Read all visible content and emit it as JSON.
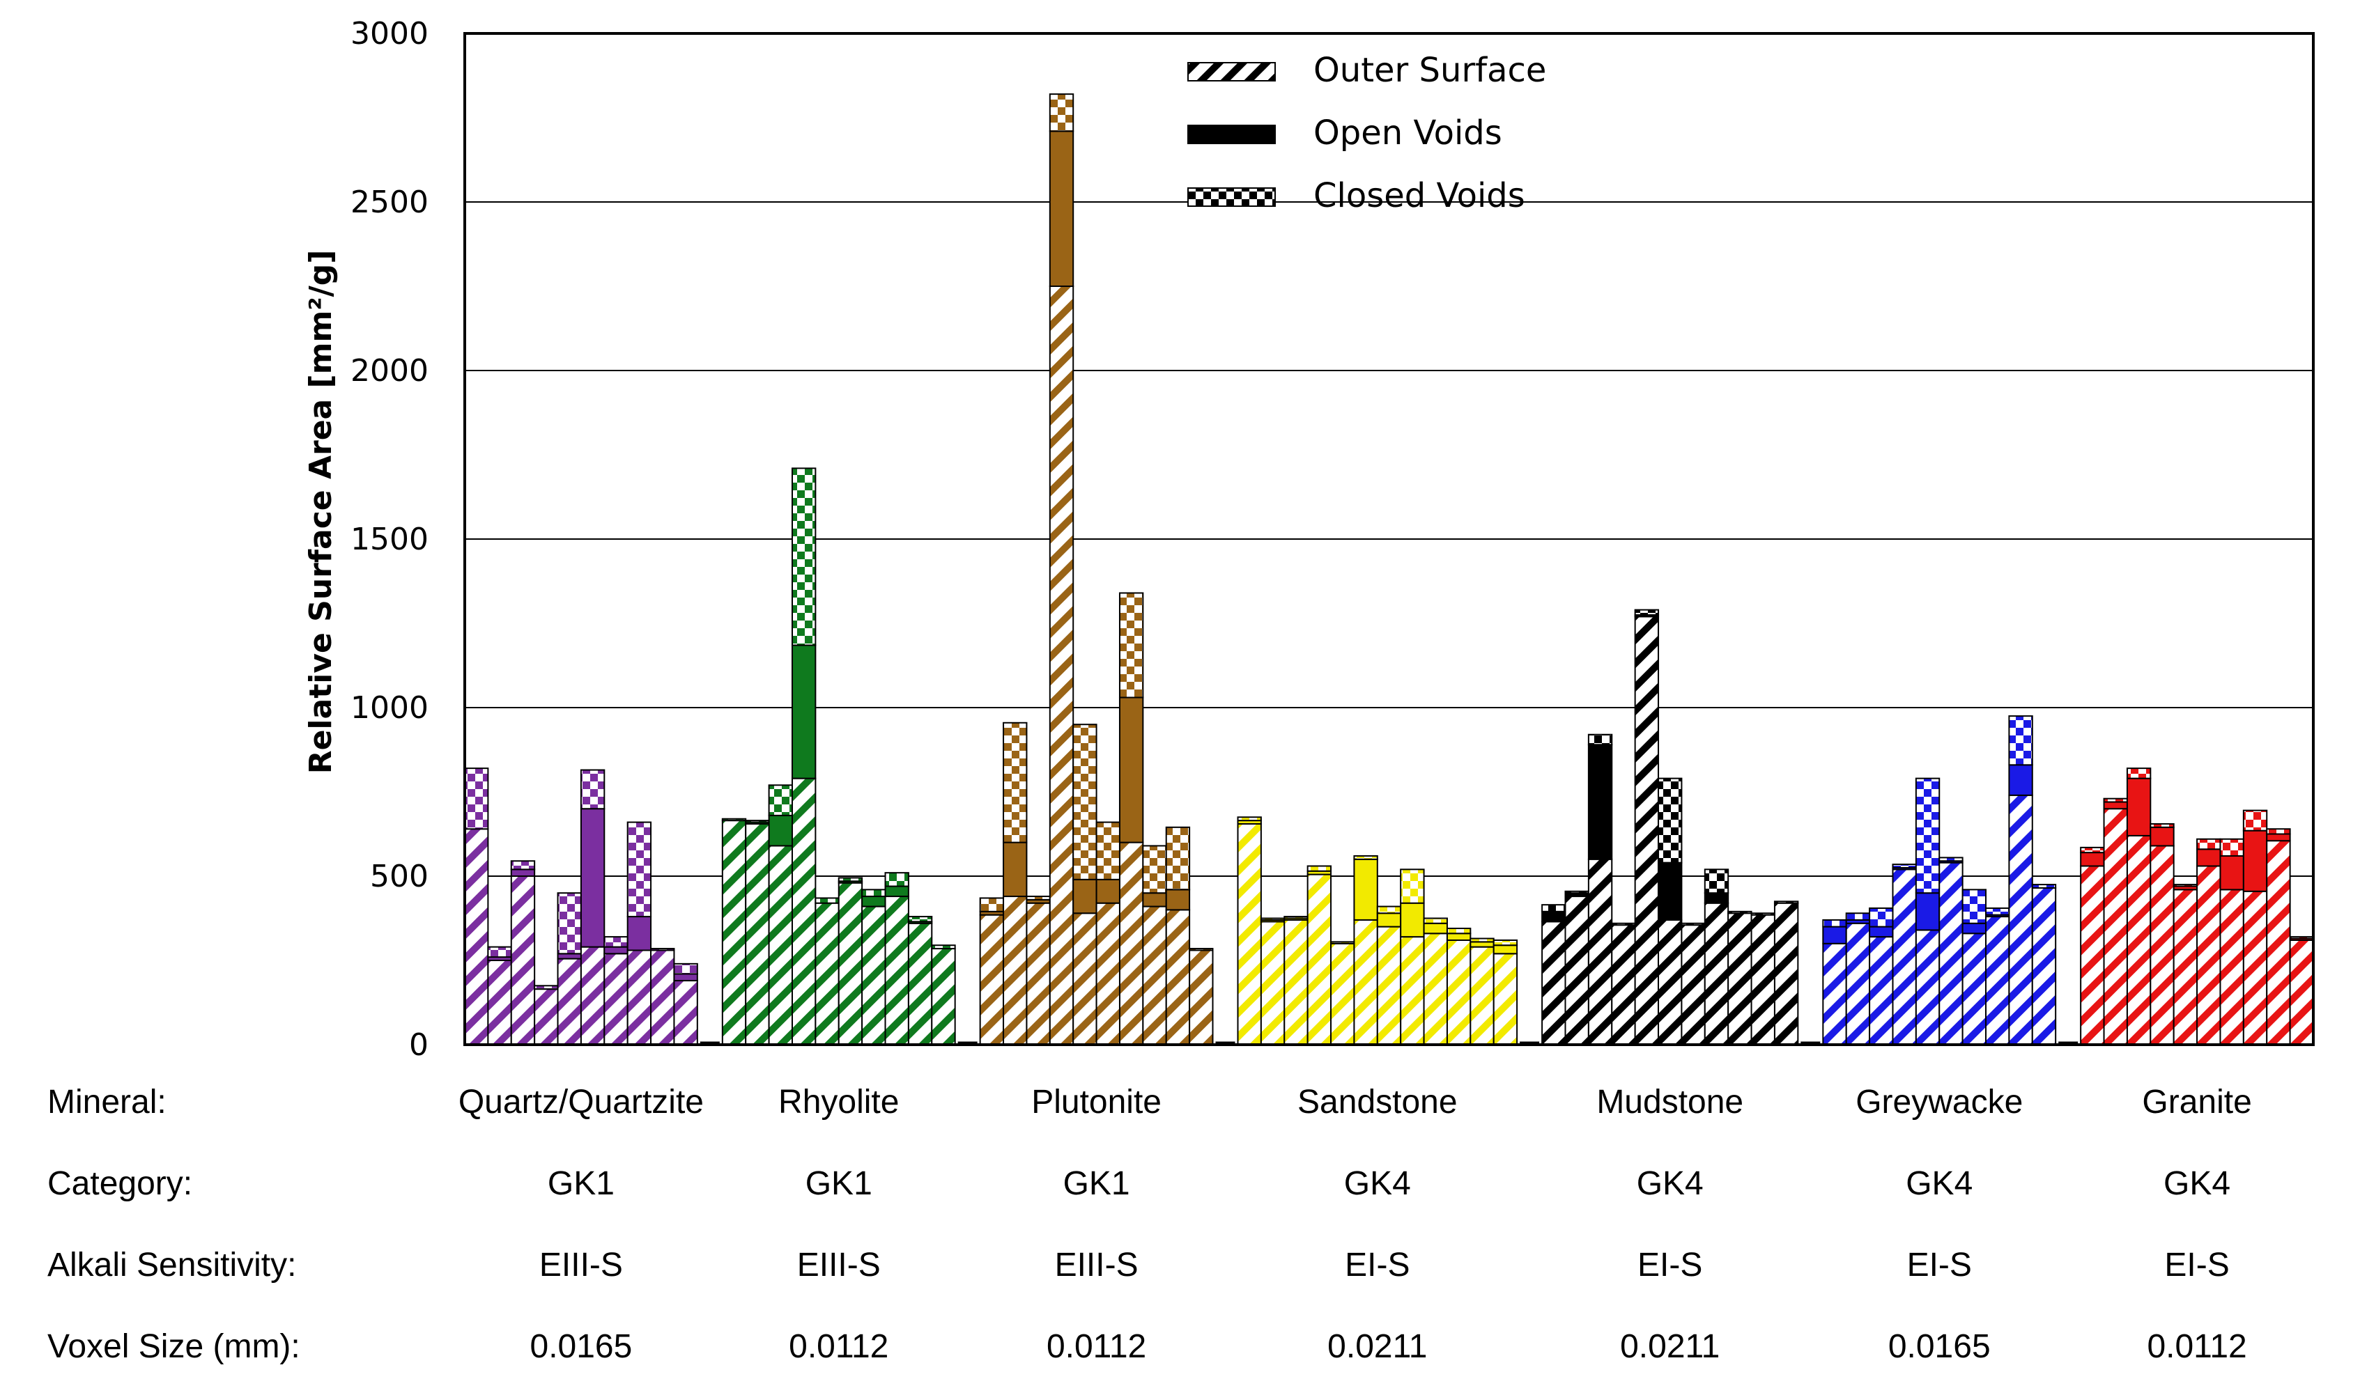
{
  "chart_data": {
    "type": "bar",
    "stacked": true,
    "ylabel": "Relative Surface Area [mm²/g]",
    "ylim": [
      0,
      3000
    ],
    "yticks": [
      0,
      500,
      1000,
      1500,
      2000,
      2500,
      3000
    ],
    "ytick_labels": [
      "0",
      "500",
      "1000",
      "1500",
      "2000",
      "2500",
      "3000"
    ],
    "grid": true,
    "legend": {
      "position": "top-center",
      "entries": [
        {
          "label": "Outer Surface",
          "style": "hatched"
        },
        {
          "label": "Open Voids",
          "style": "solid"
        },
        {
          "label": "Closed Voids",
          "style": "checkered"
        }
      ]
    },
    "row_labels": {
      "mineral": "Mineral:",
      "category": "Category:",
      "alkali": "Alkali Sensitivity:",
      "voxel": "Voxel Size (mm):"
    },
    "groups": [
      {
        "mineral": "Quartz/Quartzite",
        "category": "GK1",
        "alkali": "EIII-S",
        "voxel": "0.0165",
        "color": "#7b2fa0",
        "samples": [
          {
            "outer": 640,
            "open": 0,
            "closed": 180
          },
          {
            "outer": 250,
            "open": 10,
            "closed": 30
          },
          {
            "outer": 500,
            "open": 20,
            "closed": 25
          },
          {
            "outer": 165,
            "open": 0,
            "closed": 10
          },
          {
            "outer": 255,
            "open": 15,
            "closed": 180
          },
          {
            "outer": 290,
            "open": 410,
            "closed": 115
          },
          {
            "outer": 270,
            "open": 20,
            "closed": 30
          },
          {
            "outer": 280,
            "open": 100,
            "closed": 280
          },
          {
            "outer": 280,
            "open": 0,
            "closed": 5
          },
          {
            "outer": 190,
            "open": 20,
            "closed": 30
          }
        ]
      },
      {
        "mineral": "Rhyolite",
        "category": "GK1",
        "alkali": "EIII-S",
        "voxel": "0.0112",
        "color": "#0f7a1e",
        "samples": [
          {
            "outer": 665,
            "open": 0,
            "closed": 5
          },
          {
            "outer": 655,
            "open": 5,
            "closed": 5
          },
          {
            "outer": 590,
            "open": 90,
            "closed": 90
          },
          {
            "outer": 790,
            "open": 395,
            "closed": 525
          },
          {
            "outer": 420,
            "open": 0,
            "closed": 15
          },
          {
            "outer": 480,
            "open": 5,
            "closed": 10
          },
          {
            "outer": 410,
            "open": 30,
            "closed": 20
          },
          {
            "outer": 440,
            "open": 30,
            "closed": 40
          },
          {
            "outer": 360,
            "open": 5,
            "closed": 15
          },
          {
            "outer": 285,
            "open": 0,
            "closed": 10
          }
        ]
      },
      {
        "mineral": "Plutonite",
        "category": "GK1",
        "alkali": "EIII-S",
        "voxel": "0.0112",
        "color": "#9a6416",
        "samples": [
          {
            "outer": 385,
            "open": 10,
            "closed": 40
          },
          {
            "outer": 440,
            "open": 160,
            "closed": 355
          },
          {
            "outer": 420,
            "open": 10,
            "closed": 10
          },
          {
            "outer": 2250,
            "open": 460,
            "closed": 110
          },
          {
            "outer": 390,
            "open": 100,
            "closed": 460
          },
          {
            "outer": 420,
            "open": 70,
            "closed": 170
          },
          {
            "outer": 600,
            "open": 430,
            "closed": 310
          },
          {
            "outer": 410,
            "open": 40,
            "closed": 140
          },
          {
            "outer": 400,
            "open": 60,
            "closed": 185
          },
          {
            "outer": 280,
            "open": 0,
            "closed": 5
          }
        ]
      },
      {
        "mineral": "Sandstone",
        "category": "GK4",
        "alkali": "EI-S",
        "voxel": "0.0211",
        "color": "#f2ea00",
        "samples": [
          {
            "outer": 655,
            "open": 10,
            "closed": 10
          },
          {
            "outer": 365,
            "open": 5,
            "closed": 5
          },
          {
            "outer": 370,
            "open": 5,
            "closed": 5
          },
          {
            "outer": 505,
            "open": 10,
            "closed": 15
          },
          {
            "outer": 300,
            "open": 0,
            "closed": 5
          },
          {
            "outer": 370,
            "open": 180,
            "closed": 10
          },
          {
            "outer": 350,
            "open": 40,
            "closed": 20
          },
          {
            "outer": 320,
            "open": 100,
            "closed": 100
          },
          {
            "outer": 330,
            "open": 30,
            "closed": 15
          },
          {
            "outer": 310,
            "open": 20,
            "closed": 15
          },
          {
            "outer": 290,
            "open": 15,
            "closed": 10
          },
          {
            "outer": 270,
            "open": 25,
            "closed": 15
          }
        ]
      },
      {
        "mineral": "Mudstone",
        "category": "GK4",
        "alkali": "EI-S",
        "voxel": "0.0211",
        "color": "#000000",
        "samples": [
          {
            "outer": 365,
            "open": 30,
            "closed": 20
          },
          {
            "outer": 440,
            "open": 10,
            "closed": 5
          },
          {
            "outer": 550,
            "open": 340,
            "closed": 30
          },
          {
            "outer": 355,
            "open": 0,
            "closed": 5
          },
          {
            "outer": 1270,
            "open": 5,
            "closed": 15
          },
          {
            "outer": 370,
            "open": 170,
            "closed": 250
          },
          {
            "outer": 355,
            "open": 0,
            "closed": 5
          },
          {
            "outer": 420,
            "open": 30,
            "closed": 70
          },
          {
            "outer": 390,
            "open": 0,
            "closed": 5
          },
          {
            "outer": 385,
            "open": 0,
            "closed": 5
          },
          {
            "outer": 420,
            "open": 0,
            "closed": 5
          }
        ]
      },
      {
        "mineral": "Greywacke",
        "category": "GK4",
        "alkali": "EI-S",
        "voxel": "0.0165",
        "color": "#1a1ae6",
        "samples": [
          {
            "outer": 300,
            "open": 50,
            "closed": 20
          },
          {
            "outer": 360,
            "open": 10,
            "closed": 20
          },
          {
            "outer": 320,
            "open": 30,
            "closed": 55
          },
          {
            "outer": 520,
            "open": 5,
            "closed": 10
          },
          {
            "outer": 340,
            "open": 110,
            "closed": 340
          },
          {
            "outer": 540,
            "open": 5,
            "closed": 10
          },
          {
            "outer": 330,
            "open": 30,
            "closed": 100
          },
          {
            "outer": 380,
            "open": 5,
            "closed": 20
          },
          {
            "outer": 740,
            "open": 90,
            "closed": 145
          },
          {
            "outer": 465,
            "open": 0,
            "closed": 10
          }
        ]
      },
      {
        "mineral": "Granite",
        "category": "GK4",
        "alkali": "EI-S",
        "voxel": "0.0112",
        "color": "#e81414",
        "samples": [
          {
            "outer": 530,
            "open": 40,
            "closed": 15
          },
          {
            "outer": 700,
            "open": 20,
            "closed": 10
          },
          {
            "outer": 620,
            "open": 170,
            "closed": 30
          },
          {
            "outer": 590,
            "open": 55,
            "closed": 10
          },
          {
            "outer": 460,
            "open": 10,
            "closed": 5
          },
          {
            "outer": 530,
            "open": 50,
            "closed": 30
          },
          {
            "outer": 460,
            "open": 100,
            "closed": 50
          },
          {
            "outer": 455,
            "open": 180,
            "closed": 60
          },
          {
            "outer": 605,
            "open": 20,
            "closed": 15
          },
          {
            "outer": 310,
            "open": 5,
            "closed": 5
          }
        ]
      }
    ]
  }
}
